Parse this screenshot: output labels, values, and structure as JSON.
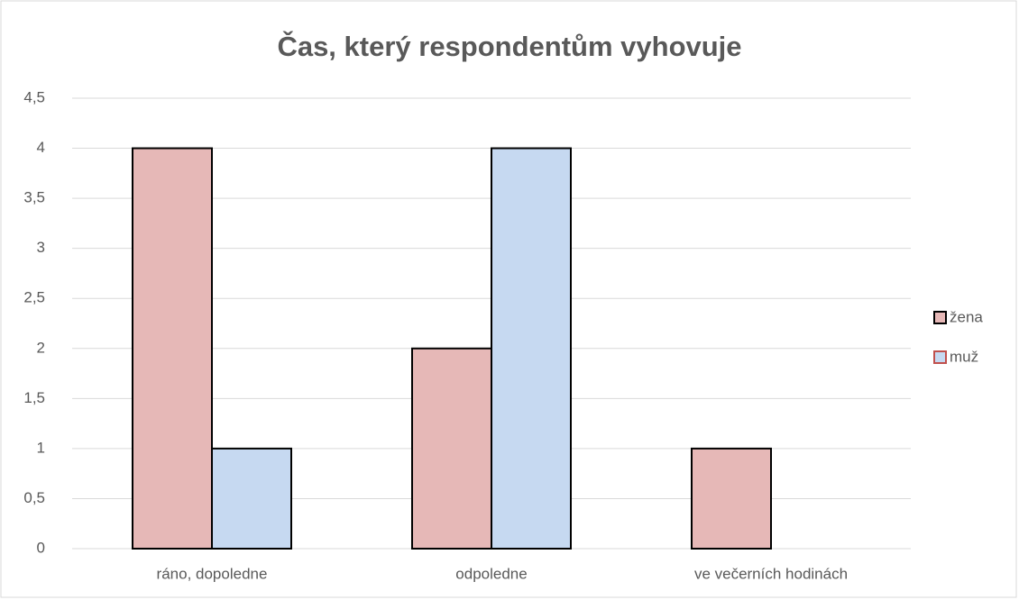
{
  "chart_data": {
    "type": "bar",
    "title": "Čas, který respondentům vyhovuje",
    "categories": [
      "ráno, dopoledne",
      "odpoledne",
      "ve večerních hodinách"
    ],
    "series": [
      {
        "name": "žena",
        "color": "#e6b8b7",
        "values": [
          4,
          2,
          1
        ]
      },
      {
        "name": "muž",
        "color": "#c6d9f1",
        "values": [
          1,
          4,
          0
        ]
      }
    ],
    "ylim": [
      0,
      4.5
    ],
    "yticks": [
      0,
      {
        "value": 0.5,
        "label": "0,5"
      },
      1,
      {
        "value": 1.5,
        "label": "1,5"
      },
      2,
      {
        "value": 2.5,
        "label": "2,5"
      },
      3,
      {
        "value": 3.5,
        "label": "3,5"
      },
      4,
      {
        "value": 4.5,
        "label": "4,5"
      }
    ],
    "grid": true,
    "legend": "right"
  }
}
